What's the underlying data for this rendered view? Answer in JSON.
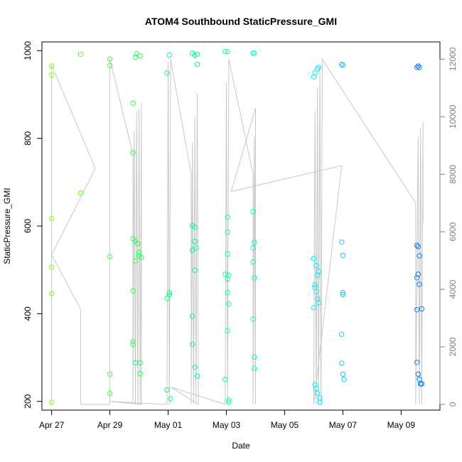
{
  "chart_data": {
    "type": "scatter",
    "title": "ATOM4 Southbound StaticPressure_GMI",
    "xlabel": "Date",
    "ylabel": "StaticPressure_GMI",
    "x_ticks": [
      "Apr 27",
      "Apr 29",
      "May 01",
      "May 03",
      "May 05",
      "May 07",
      "May 09"
    ],
    "y_ticks": [
      "200",
      "400",
      "600",
      "800",
      "1000"
    ],
    "y2_ticks": [
      "0",
      "2000",
      "4000",
      "6000",
      "8000",
      "10000",
      "12000"
    ],
    "xlim": [
      "2014-04-26T16:00",
      "2014-05-10T08:00"
    ],
    "ylim": [
      180,
      1020
    ],
    "y2lim": [
      -200,
      12600
    ],
    "grid": false,
    "series": [
      {
        "kind": "points",
        "color_scale": [
          "#7fff00",
          "#00ff7f",
          "#00ffff",
          "#0080ff"
        ],
        "values": [
          {
            "x": "2014-04-27T00:00",
            "y": 965
          },
          {
            "x": "2014-04-27T00:00",
            "y": 945
          },
          {
            "x": "2014-04-27T00:00",
            "y": 617
          },
          {
            "x": "2014-04-27T00:00",
            "y": 506
          },
          {
            "x": "2014-04-27T00:00",
            "y": 446
          },
          {
            "x": "2014-04-27T00:00",
            "y": 198
          },
          {
            "x": "2014-04-28T00:00",
            "y": 992
          },
          {
            "x": "2014-04-28T00:00",
            "y": 675
          },
          {
            "x": "2014-04-29T00:00",
            "y": 981
          },
          {
            "x": "2014-04-29T00:00",
            "y": 966
          },
          {
            "x": "2014-04-29T00:00",
            "y": 530
          },
          {
            "x": "2014-04-29T00:00",
            "y": 262
          },
          {
            "x": "2014-04-29T00:00",
            "y": 218
          },
          {
            "x": "2014-04-29T19:00",
            "y": 880
          },
          {
            "x": "2014-04-29T19:00",
            "y": 767
          },
          {
            "x": "2014-04-29T19:00",
            "y": 571
          },
          {
            "x": "2014-04-29T19:00",
            "y": 452
          },
          {
            "x": "2014-04-29T19:00",
            "y": 336
          },
          {
            "x": "2014-04-29T19:00",
            "y": 330
          },
          {
            "x": "2014-04-29T21:00",
            "y": 288
          },
          {
            "x": "2014-04-29T21:00",
            "y": 565
          },
          {
            "x": "2014-04-29T21:00",
            "y": 520
          },
          {
            "x": "2014-04-29T21:00",
            "y": 985
          },
          {
            "x": "2014-04-29T22:00",
            "y": 993
          },
          {
            "x": "2014-04-29T23:00",
            "y": 560
          },
          {
            "x": "2014-04-30T00:00",
            "y": 540
          },
          {
            "x": "2014-04-30T00:00",
            "y": 532
          },
          {
            "x": "2014-04-30T01:00",
            "y": 988
          },
          {
            "x": "2014-04-30T01:00",
            "y": 288
          },
          {
            "x": "2014-04-30T01:00",
            "y": 263
          },
          {
            "x": "2014-04-30T02:00",
            "y": 528
          },
          {
            "x": "2014-04-30T23:00",
            "y": 949
          },
          {
            "x": "2014-04-30T23:00",
            "y": 435
          },
          {
            "x": "2014-04-30T23:00",
            "y": 226
          },
          {
            "x": "2014-05-01T01:00",
            "y": 990
          },
          {
            "x": "2014-05-01T01:00",
            "y": 448
          },
          {
            "x": "2014-05-01T01:00",
            "y": 443
          },
          {
            "x": "2014-05-01T02:00",
            "y": 206
          },
          {
            "x": "2014-05-01T20:00",
            "y": 994
          },
          {
            "x": "2014-05-01T20:00",
            "y": 601
          },
          {
            "x": "2014-05-01T20:00",
            "y": 545
          },
          {
            "x": "2014-05-01T20:00",
            "y": 394
          },
          {
            "x": "2014-05-01T20:00",
            "y": 330
          },
          {
            "x": "2014-05-01T22:00",
            "y": 990
          },
          {
            "x": "2014-05-01T22:00",
            "y": 597
          },
          {
            "x": "2014-05-01T22:00",
            "y": 565
          },
          {
            "x": "2014-05-01T22:00",
            "y": 499
          },
          {
            "x": "2014-05-01T22:00",
            "y": 278
          },
          {
            "x": "2014-05-01T23:00",
            "y": 550
          },
          {
            "x": "2014-05-02T00:00",
            "y": 992
          },
          {
            "x": "2014-05-02T00:00",
            "y": 969
          },
          {
            "x": "2014-05-02T00:00",
            "y": 258
          },
          {
            "x": "2014-05-02T23:00",
            "y": 998
          },
          {
            "x": "2014-05-02T23:00",
            "y": 490
          },
          {
            "x": "2014-05-02T23:00",
            "y": 250
          },
          {
            "x": "2014-05-03T01:00",
            "y": 998
          },
          {
            "x": "2014-05-03T01:00",
            "y": 620
          },
          {
            "x": "2014-05-03T01:00",
            "y": 586
          },
          {
            "x": "2014-05-03T01:00",
            "y": 536
          },
          {
            "x": "2014-05-03T01:00",
            "y": 479
          },
          {
            "x": "2014-05-03T01:00",
            "y": 448
          },
          {
            "x": "2014-05-03T01:00",
            "y": 361
          },
          {
            "x": "2014-05-03T02:00",
            "y": 488
          },
          {
            "x": "2014-05-03T02:00",
            "y": 422
          },
          {
            "x": "2014-05-03T02:00",
            "y": 203
          },
          {
            "x": "2014-05-03T02:00",
            "y": 198
          },
          {
            "x": "2014-05-03T22:00",
            "y": 994
          },
          {
            "x": "2014-05-03T22:00",
            "y": 633
          },
          {
            "x": "2014-05-03T22:00",
            "y": 550
          },
          {
            "x": "2014-05-03T22:00",
            "y": 518
          },
          {
            "x": "2014-05-03T22:00",
            "y": 388
          },
          {
            "x": "2014-05-03T23:00",
            "y": 995
          },
          {
            "x": "2014-05-03T23:00",
            "y": 563
          },
          {
            "x": "2014-05-03T23:00",
            "y": 482
          },
          {
            "x": "2014-05-03T23:00",
            "y": 301
          },
          {
            "x": "2014-05-03T23:00",
            "y": 275
          },
          {
            "x": "2014-05-06T00:00",
            "y": 940
          },
          {
            "x": "2014-05-06T00:00",
            "y": 526
          },
          {
            "x": "2014-05-06T00:00",
            "y": 414
          },
          {
            "x": "2014-05-06T01:00",
            "y": 950
          },
          {
            "x": "2014-05-06T01:00",
            "y": 466
          },
          {
            "x": "2014-05-06T01:00",
            "y": 460
          },
          {
            "x": "2014-05-06T01:00",
            "y": 238
          },
          {
            "x": "2014-05-06T02:00",
            "y": 510
          },
          {
            "x": "2014-05-06T02:00",
            "y": 450
          },
          {
            "x": "2014-05-06T02:00",
            "y": 229
          },
          {
            "x": "2014-05-06T03:00",
            "y": 958
          },
          {
            "x": "2014-05-06T03:00",
            "y": 488
          },
          {
            "x": "2014-05-06T03:00",
            "y": 434
          },
          {
            "x": "2014-05-06T03:00",
            "y": 219
          },
          {
            "x": "2014-05-06T04:00",
            "y": 962
          },
          {
            "x": "2014-05-06T04:00",
            "y": 497
          },
          {
            "x": "2014-05-06T04:00",
            "y": 425
          },
          {
            "x": "2014-05-06T05:00",
            "y": 208
          },
          {
            "x": "2014-05-06T05:00",
            "y": 198
          },
          {
            "x": "2014-05-06T23:00",
            "y": 969
          },
          {
            "x": "2014-05-06T23:00",
            "y": 563
          },
          {
            "x": "2014-05-06T23:00",
            "y": 353
          },
          {
            "x": "2014-05-06T23:00",
            "y": 287
          },
          {
            "x": "2014-05-07T00:00",
            "y": 967
          },
          {
            "x": "2014-05-07T00:00",
            "y": 533
          },
          {
            "x": "2014-05-07T00:00",
            "y": 448
          },
          {
            "x": "2014-05-07T00:00",
            "y": 444
          },
          {
            "x": "2014-05-07T00:00",
            "y": 262
          },
          {
            "x": "2014-05-07T01:00",
            "y": 250
          },
          {
            "x": "2014-05-09T13:00",
            "y": 962
          },
          {
            "x": "2014-05-09T13:00",
            "y": 556
          },
          {
            "x": "2014-05-09T13:00",
            "y": 482
          },
          {
            "x": "2014-05-09T13:00",
            "y": 409
          },
          {
            "x": "2014-05-09T13:00",
            "y": 289
          },
          {
            "x": "2014-05-09T14:00",
            "y": 965
          },
          {
            "x": "2014-05-09T14:00",
            "y": 553
          },
          {
            "x": "2014-05-09T14:00",
            "y": 490
          },
          {
            "x": "2014-05-09T14:00",
            "y": 262
          },
          {
            "x": "2014-05-09T15:00",
            "y": 962
          },
          {
            "x": "2014-05-09T15:00",
            "y": 532
          },
          {
            "x": "2014-05-09T15:00",
            "y": 467
          },
          {
            "x": "2014-05-09T15:00",
            "y": 250
          },
          {
            "x": "2014-05-09T16:00",
            "y": 240
          },
          {
            "x": "2014-05-09T17:00",
            "y": 411
          },
          {
            "x": "2014-05-09T17:00",
            "y": 240
          }
        ]
      },
      {
        "kind": "line",
        "color": "#c8c8c8",
        "axis": "right",
        "values": [
          {
            "x": "2014-04-27T00:00",
            "y": 0
          },
          {
            "x": "2014-04-27T00:00",
            "y": 11800
          },
          {
            "x": "2014-04-28T12:00",
            "y": 8200
          },
          {
            "x": "2014-04-27T00:00",
            "y": 5200
          },
          {
            "x": "2014-04-28T00:00",
            "y": 3300
          },
          {
            "x": "2014-04-28T00:00",
            "y": 0
          },
          {
            "x": "2014-04-29T00:00",
            "y": 0
          },
          {
            "x": "2014-04-29T00:00",
            "y": 12000
          },
          {
            "x": "2014-04-29T19:00",
            "y": 8700
          },
          {
            "x": "2014-04-29T19:00",
            "y": 0
          },
          {
            "x": "2014-04-29T20:00",
            "y": 9500
          },
          {
            "x": "2014-04-29T21:00",
            "y": 0
          },
          {
            "x": "2014-04-29T22:00",
            "y": 10200
          },
          {
            "x": "2014-04-29T23:00",
            "y": 0
          },
          {
            "x": "2014-04-30T00:00",
            "y": 10300
          },
          {
            "x": "2014-04-30T01:00",
            "y": 0
          },
          {
            "x": "2014-04-30T02:00",
            "y": 10500
          },
          {
            "x": "2014-04-30T02:00",
            "y": 0
          },
          {
            "x": "2014-04-29T00:00",
            "y": 100
          },
          {
            "x": "2014-04-30T23:00",
            "y": 0
          },
          {
            "x": "2014-05-01T00:00",
            "y": 11900
          },
          {
            "x": "2014-05-01T01:00",
            "y": 0
          },
          {
            "x": "2014-05-01T02:00",
            "y": 12000
          },
          {
            "x": "2014-05-01T19:00",
            "y": 8000
          },
          {
            "x": "2014-05-01T19:00",
            "y": 0
          },
          {
            "x": "2014-05-01T20:00",
            "y": 9100
          },
          {
            "x": "2014-05-01T21:00",
            "y": 0
          },
          {
            "x": "2014-05-01T22:00",
            "y": 10000
          },
          {
            "x": "2014-05-01T23:00",
            "y": 0
          },
          {
            "x": "2014-05-02T00:00",
            "y": 10800
          },
          {
            "x": "2014-05-02T01:00",
            "y": 0
          },
          {
            "x": "2014-05-01T02:00",
            "y": 600
          },
          {
            "x": "2014-05-02T23:00",
            "y": 0
          },
          {
            "x": "2014-05-03T00:00",
            "y": 11200
          },
          {
            "x": "2014-05-03T01:00",
            "y": 0
          },
          {
            "x": "2014-05-03T02:00",
            "y": 12000
          },
          {
            "x": "2014-05-03T22:00",
            "y": 8000
          },
          {
            "x": "2014-05-03T22:00",
            "y": 0
          },
          {
            "x": "2014-05-03T23:00",
            "y": 9300
          },
          {
            "x": "2014-05-04T00:00",
            "y": 0
          },
          {
            "x": "2014-05-04T00:00",
            "y": 10300
          },
          {
            "x": "2014-05-03T04:00",
            "y": 7400
          },
          {
            "x": "2014-05-06T23:00",
            "y": 8300
          },
          {
            "x": "2014-05-06T00:00",
            "y": 0
          },
          {
            "x": "2014-05-06T01:00",
            "y": 10200
          },
          {
            "x": "2014-05-06T02:00",
            "y": 0
          },
          {
            "x": "2014-05-06T03:00",
            "y": 11000
          },
          {
            "x": "2014-05-06T04:00",
            "y": 0
          },
          {
            "x": "2014-05-06T05:00",
            "y": 11800
          },
          {
            "x": "2014-05-06T06:00",
            "y": 0
          },
          {
            "x": "2014-05-06T07:00",
            "y": 12000
          },
          {
            "x": "2014-05-09T12:00",
            "y": 7000
          },
          {
            "x": "2014-05-09T12:00",
            "y": 0
          },
          {
            "x": "2014-05-09T14:00",
            "y": 9300
          },
          {
            "x": "2014-05-09T15:00",
            "y": 0
          },
          {
            "x": "2014-05-09T16:00",
            "y": 9600
          },
          {
            "x": "2014-05-09T17:00",
            "y": 0
          },
          {
            "x": "2014-05-09T18:00",
            "y": 9800
          },
          {
            "x": "2014-05-09T18:00",
            "y": 6300
          }
        ]
      }
    ]
  }
}
